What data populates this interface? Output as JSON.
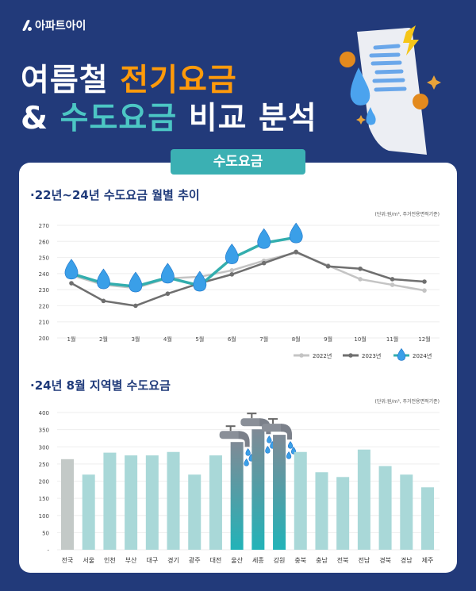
{
  "brand": "아파트아이",
  "title": {
    "line1_white": "여름철",
    "line1_orange": "전기요금",
    "line2_amp": "&",
    "line2_teal": "수도요금",
    "line2_white": "비교 분석"
  },
  "tab_label": "수도요금",
  "colors": {
    "background": "#223a7a",
    "accent_orange": "#ff9a0a",
    "accent_teal": "#3bb0b3",
    "s2022": "#c4c4c4",
    "s2023": "#6f6f6f",
    "s2024": "#33aeae"
  },
  "chart_data": [
    {
      "type": "line",
      "title": "·22년~24년 수도요금 월별 추이",
      "unit_note": "(단위:원/m³, 주거전용면적기준)",
      "categories": [
        "1월",
        "2월",
        "3월",
        "4월",
        "5월",
        "6월",
        "7월",
        "8월",
        "9월",
        "10월",
        "11월",
        "12월"
      ],
      "ylim": [
        200,
        270
      ],
      "yticks": [
        200,
        210,
        220,
        230,
        240,
        250,
        260,
        270
      ],
      "grid": true,
      "legend": "bottom-right",
      "series": [
        {
          "name": "2022년",
          "values": [
            239,
            233,
            231,
            237,
            238,
            242,
            248,
            253,
            245,
            236.5,
            233,
            229.5
          ]
        },
        {
          "name": "2023년",
          "values": [
            234,
            223,
            220,
            227.5,
            234,
            239.5,
            246.5,
            253.5,
            244.5,
            243,
            236.5,
            235
          ]
        },
        {
          "name": "2024년",
          "values": [
            240,
            234,
            232,
            237.5,
            232.5,
            249.5,
            259,
            262.5,
            null,
            null,
            null,
            null
          ],
          "marker": "water-drop-icon"
        }
      ]
    },
    {
      "type": "bar",
      "title": "·24년 8월 지역별 수도요금",
      "unit_note": "(단위:원/m³, 주거전용면적기준)",
      "categories": [
        "전국",
        "서울",
        "인천",
        "부산",
        "대구",
        "경기",
        "광주",
        "대전",
        "울산",
        "세종",
        "강원",
        "충북",
        "충남",
        "전북",
        "전남",
        "경북",
        "경남",
        "제주"
      ],
      "values": [
        264,
        219,
        283,
        275,
        275,
        285,
        219,
        275,
        314,
        351,
        335,
        285,
        226,
        212,
        292,
        244,
        219,
        182
      ],
      "highlight": [
        "울산",
        "세종",
        "강원"
      ],
      "ylim": [
        0,
        400
      ],
      "yticks": [
        "-",
        "50",
        "100",
        "150",
        "200",
        "250",
        "300",
        "350",
        "400"
      ],
      "grid": true
    }
  ]
}
